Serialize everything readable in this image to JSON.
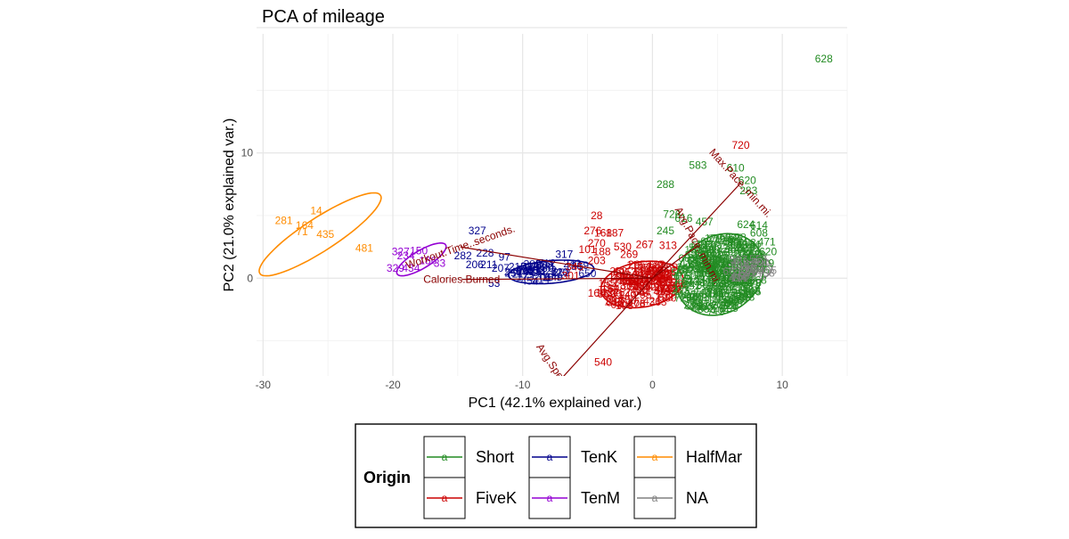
{
  "chart_data": {
    "type": "scatter",
    "title": "PCA of mileage",
    "xlabel": "PC1 (42.1% explained var.)",
    "ylabel": "PC2 (21.0% explained var.)",
    "xlim": [
      -30.5,
      15
    ],
    "ylim": [
      -7.8,
      19.5
    ],
    "x_ticks": [
      -30,
      -20,
      -10,
      0,
      10
    ],
    "y_ticks": [
      0,
      10
    ],
    "grid": true,
    "legend": {
      "title": "Origin",
      "position": "bottom",
      "entries": [
        {
          "label": "Short",
          "color": "#228B22"
        },
        {
          "label": "FiveK",
          "color": "#CC0000"
        },
        {
          "label": "TenK",
          "color": "#00008B"
        },
        {
          "label": "TenM",
          "color": "#9400D3"
        },
        {
          "label": "HalfMar",
          "color": "#FF8C00"
        },
        {
          "label": "NA",
          "color": "#808080"
        }
      ],
      "key_glyph": "a"
    },
    "arrow_color": "#8B0000",
    "loadings": [
      {
        "label": "Workout.Time..seconds.",
        "x": -14.8,
        "y": 2.5,
        "angle": 19
      },
      {
        "label": "Calories.Burned",
        "x": -14.7,
        "y": -0.1,
        "angle": 0
      },
      {
        "label": "Avg.Speed..mi.h.",
        "x": -7.0,
        "y": -8.0,
        "angle": -56
      },
      {
        "label": "Avg.Pace..min.mi.",
        "x": 3.5,
        "y": 2.6,
        "angle": -62
      },
      {
        "label": "Max.Pace..min.mi.",
        "x": 6.8,
        "y": 7.6,
        "angle": -48
      }
    ],
    "ellipses": [
      {
        "group": "HalfMar",
        "cx": -25.6,
        "cy": 3.5,
        "rx": 5.6,
        "ry": 1.3,
        "angle": 34
      },
      {
        "group": "TenM",
        "cx": -17.8,
        "cy": 1.5,
        "rx": 2.2,
        "ry": 0.7,
        "angle": 32
      },
      {
        "group": "TenK",
        "cx": -7.8,
        "cy": 0.5,
        "rx": 3.3,
        "ry": 0.9,
        "angle": 5
      },
      {
        "group": "FiveK",
        "cx": -0.8,
        "cy": -0.5,
        "rx": 3.2,
        "ry": 1.8,
        "angle": 10
      },
      {
        "group": "Short",
        "cx": 5.2,
        "cy": 0.3,
        "rx": 3.6,
        "ry": 3.0,
        "angle": 40
      },
      {
        "group": "NA",
        "cx": 7.5,
        "cy": 0.8,
        "rx": 1.7,
        "ry": 1.0,
        "angle": 0
      }
    ],
    "points": [
      {
        "label": "628",
        "group": "Short",
        "x": 13.2,
        "y": 17.5
      },
      {
        "label": "583",
        "group": "Short",
        "x": 3.5,
        "y": 9.0
      },
      {
        "label": "610",
        "group": "Short",
        "x": 6.4,
        "y": 8.8
      },
      {
        "label": "620",
        "group": "Short",
        "x": 7.3,
        "y": 7.8
      },
      {
        "label": "288",
        "group": "Short",
        "x": 1.0,
        "y": 7.5
      },
      {
        "label": "283",
        "group": "Short",
        "x": 7.4,
        "y": 7.0
      },
      {
        "label": "624",
        "group": "Short",
        "x": 7.2,
        "y": 4.3
      },
      {
        "label": "614",
        "group": "Short",
        "x": 8.2,
        "y": 4.2
      },
      {
        "label": "608",
        "group": "Short",
        "x": 8.2,
        "y": 3.6
      },
      {
        "label": "471",
        "group": "Short",
        "x": 8.8,
        "y": 2.9
      },
      {
        "label": "620",
        "group": "Short",
        "x": 8.9,
        "y": 2.1
      },
      {
        "label": "726",
        "group": "Short",
        "x": 1.5,
        "y": 5.1
      },
      {
        "label": "616",
        "group": "Short",
        "x": 2.4,
        "y": 4.8
      },
      {
        "label": "245",
        "group": "Short",
        "x": 1.0,
        "y": 3.8
      },
      {
        "label": "457",
        "group": "Short",
        "x": 4.0,
        "y": 4.5
      },
      {
        "label": "272",
        "group": "Short",
        "x": 4.0,
        "y": 0.2
      },
      {
        "label": "728",
        "group": "Short",
        "x": 7.2,
        "y": -1.5
      },
      {
        "label": "128",
        "group": "Short",
        "x": 5.8,
        "y": -2.2
      },
      {
        "label": "219",
        "group": "Short",
        "x": 8.7,
        "y": 1.2
      },
      {
        "label": "720",
        "group": "FiveK",
        "x": 6.8,
        "y": 10.6
      },
      {
        "label": "28",
        "group": "FiveK",
        "x": -4.3,
        "y": 5.0
      },
      {
        "label": "276",
        "group": "FiveK",
        "x": -4.6,
        "y": 3.8
      },
      {
        "label": "168",
        "group": "FiveK",
        "x": -3.8,
        "y": 3.6
      },
      {
        "label": "187",
        "group": "FiveK",
        "x": -2.9,
        "y": 3.6
      },
      {
        "label": "270",
        "group": "FiveK",
        "x": -4.3,
        "y": 2.8
      },
      {
        "label": "267",
        "group": "FiveK",
        "x": -0.6,
        "y": 2.7
      },
      {
        "label": "101",
        "group": "FiveK",
        "x": -5.0,
        "y": 2.3
      },
      {
        "label": "188",
        "group": "FiveK",
        "x": -3.9,
        "y": 2.1
      },
      {
        "label": "530",
        "group": "FiveK",
        "x": -2.3,
        "y": 2.5
      },
      {
        "label": "269",
        "group": "FiveK",
        "x": -1.8,
        "y": 1.9
      },
      {
        "label": "313",
        "group": "FiveK",
        "x": 1.2,
        "y": 2.6
      },
      {
        "label": "345",
        "group": "FiveK",
        "x": -6.0,
        "y": 0.9
      },
      {
        "label": "203",
        "group": "FiveK",
        "x": -4.3,
        "y": 1.4
      },
      {
        "label": "265",
        "group": "FiveK",
        "x": -1.2,
        "y": 1.1
      },
      {
        "label": "301",
        "group": "FiveK",
        "x": -6.3,
        "y": 0.2
      },
      {
        "label": "51",
        "group": "FiveK",
        "x": -1.4,
        "y": -0.7
      },
      {
        "label": "160",
        "group": "FiveK",
        "x": -4.3,
        "y": -1.2
      },
      {
        "label": "540",
        "group": "FiveK",
        "x": -3.8,
        "y": -6.7
      },
      {
        "label": "327",
        "group": "TenK",
        "x": -13.5,
        "y": 3.8
      },
      {
        "label": "282",
        "group": "TenK",
        "x": -14.6,
        "y": 1.8
      },
      {
        "label": "228",
        "group": "TenK",
        "x": -12.9,
        "y": 2.0
      },
      {
        "label": "97",
        "group": "TenK",
        "x": -11.4,
        "y": 1.7
      },
      {
        "label": "317",
        "group": "TenK",
        "x": -6.8,
        "y": 1.9
      },
      {
        "label": "206",
        "group": "TenK",
        "x": -13.7,
        "y": 1.1
      },
      {
        "label": "211",
        "group": "TenK",
        "x": -12.6,
        "y": 1.1
      },
      {
        "label": "207",
        "group": "TenK",
        "x": -11.7,
        "y": 0.8
      },
      {
        "label": "210",
        "group": "TenK",
        "x": -10.4,
        "y": 0.9
      },
      {
        "label": "429",
        "group": "TenK",
        "x": -9.4,
        "y": 0.9
      },
      {
        "label": "230",
        "group": "TenK",
        "x": -8.3,
        "y": 0.8
      },
      {
        "label": "53",
        "group": "TenK",
        "x": -12.2,
        "y": -0.4
      },
      {
        "label": "327",
        "group": "TenM",
        "x": -19.4,
        "y": 2.1
      },
      {
        "label": "150",
        "group": "TenM",
        "x": -18.0,
        "y": 2.2
      },
      {
        "label": "234",
        "group": "TenM",
        "x": -19.0,
        "y": 1.8
      },
      {
        "label": "186",
        "group": "TenM",
        "x": -17.3,
        "y": 1.4
      },
      {
        "label": "329",
        "group": "TenM",
        "x": -19.8,
        "y": 0.8
      },
      {
        "label": "434",
        "group": "TenM",
        "x": -18.6,
        "y": 0.8
      },
      {
        "label": "33",
        "group": "TenM",
        "x": -16.4,
        "y": 1.2
      },
      {
        "label": "14",
        "group": "HalfMar",
        "x": -25.9,
        "y": 5.4
      },
      {
        "label": "281",
        "group": "HalfMar",
        "x": -28.4,
        "y": 4.6
      },
      {
        "label": "164",
        "group": "HalfMar",
        "x": -26.8,
        "y": 4.2
      },
      {
        "label": "71",
        "group": "HalfMar",
        "x": -27.0,
        "y": 3.7
      },
      {
        "label": "435",
        "group": "HalfMar",
        "x": -25.2,
        "y": 3.5
      },
      {
        "label": "481",
        "group": "HalfMar",
        "x": -22.2,
        "y": 2.4
      },
      {
        "label": "201",
        "group": "NA",
        "x": 8.3,
        "y": 1.3
      },
      {
        "label": "204",
        "group": "NA",
        "x": 7.9,
        "y": 0.5
      }
    ]
  }
}
